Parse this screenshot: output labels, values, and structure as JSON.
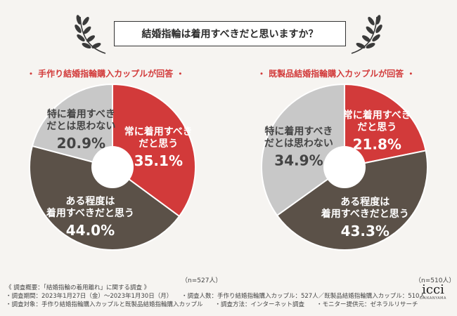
{
  "title": "結婚指輪は着用すべきだと思いますか？",
  "chart_data": [
    {
      "type": "pie",
      "title": "・ 手作り結婚指輪購入カップルが回答 ・",
      "n_label": "（n=527人）",
      "slices": [
        {
          "label_lines": [
            "常に着用すべき",
            "だと思う"
          ],
          "value": 35.1,
          "value_label": "35.1%",
          "color": "#d23a3a"
        },
        {
          "label_lines": [
            "ある程度は",
            "着用すべきだと思う"
          ],
          "value": 44.0,
          "value_label": "44.0%",
          "color": "#5b5148"
        },
        {
          "label_lines": [
            "特に着用すべき",
            "だとは思わない"
          ],
          "value": 20.9,
          "value_label": "20.9%",
          "color": "#c8c8c8"
        }
      ]
    },
    {
      "type": "pie",
      "title": "・ 既製品結婚指輪購入カップルが回答 ・",
      "n_label": "（n=510人）",
      "slices": [
        {
          "label_lines": [
            "常に着用すべき",
            "だと思う"
          ],
          "value": 21.8,
          "value_label": "21.8%",
          "color": "#d23a3a"
        },
        {
          "label_lines": [
            "ある程度は",
            "着用すべきだと思う"
          ],
          "value": 43.3,
          "value_label": "43.3%",
          "color": "#5b5148"
        },
        {
          "label_lines": [
            "特に着用すべき",
            "だとは思わない"
          ],
          "value": 34.9,
          "value_label": "34.9%",
          "color": "#c8c8c8"
        }
      ]
    }
  ],
  "footnotes": [
    "《 調査概要：「結婚指輪の着用離れ」に関する調査 》",
    "・調査期間：2023年1月27日（金）～2023年1月30日（月）　　・調査人数：手作り結婚指輪購入カップル：527人／既製品結婚指輪購入カップル：510人",
    "・調査対象：手作り結婚指輪購入カップルと既製品結婚指輪購入カップル　　・調査方法：インターネット調査　　・モニター提供元：ゼネラルリサーチ"
  ],
  "logo": {
    "mark": "icci",
    "sub": "DAIKANYAMA"
  }
}
